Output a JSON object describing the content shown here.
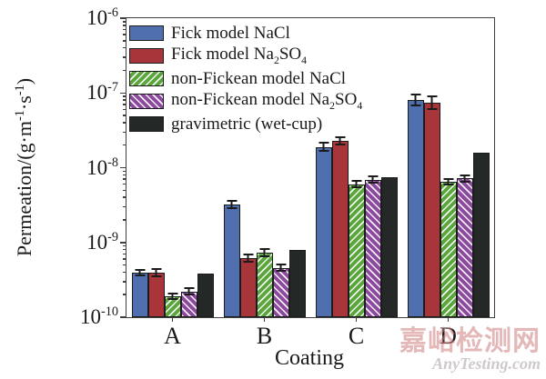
{
  "watermark": {
    "line1": "嘉峪检测网",
    "line2": "AnyTesting.com"
  },
  "chart_data": {
    "type": "bar",
    "title": "",
    "xlabel": "Coating",
    "ylabel": "Permeation/(g·m^{-1}·s^{-1})",
    "yscale": "log",
    "ylim": [
      1e-10,
      1e-06
    ],
    "yticks": [
      {
        "value": 1e-06,
        "label": "10^{-6}"
      },
      {
        "value": 1e-07,
        "label": "10^{-7}"
      },
      {
        "value": 1e-08,
        "label": "10^{-8}"
      },
      {
        "value": 1e-09,
        "label": "10^{-9}"
      },
      {
        "value": 1e-10,
        "label": "10^{-10}"
      }
    ],
    "grid": false,
    "legend_position": "upper left",
    "categories": [
      "A",
      "B",
      "C",
      "D"
    ],
    "series": [
      {
        "name": "fick-nacl",
        "label": "Fick model NaCl",
        "color": "#4f6fae",
        "hatch": null,
        "values": [
          3.9e-10,
          3.2e-09,
          1.9e-08,
          8.1e-08
        ],
        "err_plus": [
          5e-11,
          5e-10,
          3e-09,
          1.7e-08
        ],
        "err_minus": [
          4e-11,
          4e-10,
          2.5e-09,
          1.4e-08
        ]
      },
      {
        "name": "fick-na2so4",
        "label": "Fick model Na_{2}SO_{4}",
        "color": "#a8353a",
        "hatch": null,
        "values": [
          3.9e-10,
          6.2e-10,
          2.3e-08,
          7.4e-08
        ],
        "err_plus": [
          6e-11,
          9e-11,
          3.5e-09,
          1.8e-08
        ],
        "err_minus": [
          5e-11,
          8e-11,
          3e-09,
          1.5e-08
        ]
      },
      {
        "name": "nonfickean-nacl",
        "label": "non-Fickean model NaCl",
        "color": "#5aa53c",
        "hatch": "/",
        "values": [
          1.9e-10,
          7.3e-10,
          6e-09,
          6.5e-09
        ],
        "err_plus": [
          2.5e-11,
          1e-10,
          8e-10,
          8e-10
        ],
        "err_minus": [
          2e-11,
          9e-11,
          7e-10,
          7e-10
        ]
      },
      {
        "name": "nonfickean-na2so4",
        "label": "non-Fickean model Na_{2}SO_{4}",
        "color": "#8b4a9e",
        "hatch": "\\",
        "values": [
          2.2e-10,
          4.6e-10,
          6.9e-09,
          7.2e-09
        ],
        "err_plus": [
          3e-11,
          6e-11,
          9e-10,
          1e-09
        ],
        "err_minus": [
          2.5e-11,
          5e-11,
          8e-10,
          9e-10
        ]
      },
      {
        "name": "gravimetric",
        "label": "gravimetric (wet-cup)",
        "color": "#242827",
        "hatch": null,
        "values": [
          3.8e-10,
          7.9e-10,
          7.4e-09,
          1.6e-08
        ],
        "err_plus": null,
        "err_minus": null
      }
    ]
  }
}
